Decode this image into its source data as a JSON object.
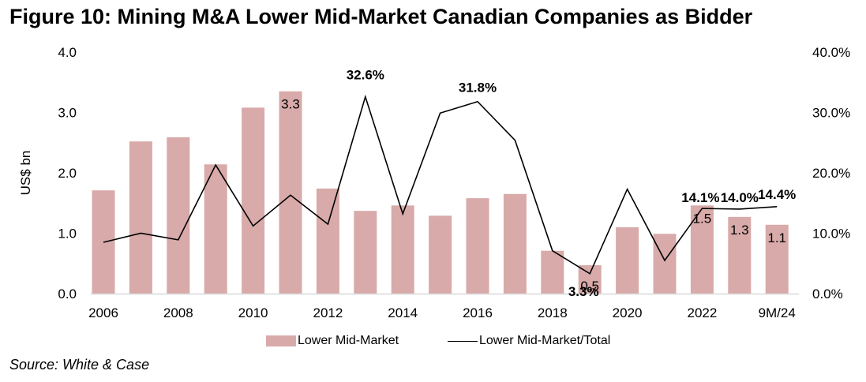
{
  "figure": {
    "title": "Figure 10: Mining M&A Lower Mid-Market Canadian Companies as Bidder",
    "source": "Source: White & Case"
  },
  "legend": {
    "bar_label": "Lower Mid-Market",
    "line_label": "Lower Mid-Market/Total"
  },
  "colors": {
    "bar": "#d8aaa9",
    "line": "#000000",
    "axis": "#d9d9d9"
  },
  "chart_data": {
    "type": "bar",
    "title": "Figure 10: Mining M&A Lower Mid-Market Canadian Companies as Bidder",
    "xlabel": "",
    "ylabel": "US$ bn",
    "y2label": "",
    "ylim": [
      0,
      4.0
    ],
    "y2lim": [
      0,
      0.4
    ],
    "yticks": [
      "0.0",
      "1.0",
      "2.0",
      "3.0",
      "4.0"
    ],
    "y2ticks": [
      "0.0%",
      "10.0%",
      "20.0%",
      "30.0%",
      "40.0%"
    ],
    "grid": false,
    "legend_position": "bottom",
    "categories": [
      "2006",
      "2007",
      "2008",
      "2009",
      "2010",
      "2011",
      "2012",
      "2013",
      "2014",
      "2015",
      "2016",
      "2017",
      "2018",
      "2019",
      "2020",
      "2021",
      "2022",
      "2023",
      "9M/24"
    ],
    "xtick_labels": [
      "2006",
      "",
      "2008",
      "",
      "2010",
      "",
      "2012",
      "",
      "2014",
      "",
      "2016",
      "",
      "2018",
      "",
      "2020",
      "",
      "2022",
      "",
      "9M/24"
    ],
    "series": [
      {
        "name": "Lower Mid-Market",
        "type": "bar",
        "axis": "primary",
        "values": [
          1.71,
          2.52,
          2.59,
          2.14,
          3.08,
          3.35,
          1.74,
          1.37,
          1.46,
          1.29,
          1.58,
          1.65,
          0.71,
          0.47,
          1.1,
          0.99,
          1.46,
          1.27,
          1.14
        ],
        "data_labels": [
          "",
          "",
          "",
          "",
          "",
          "3.3",
          "",
          "",
          "",
          "",
          "",
          "",
          "",
          "0.5",
          "",
          "",
          "1.5",
          "1.3",
          "1.1"
        ]
      },
      {
        "name": "Lower Mid-Market/Total",
        "type": "line",
        "axis": "secondary",
        "values": [
          0.085,
          0.1,
          0.089,
          0.213,
          0.112,
          0.163,
          0.115,
          0.326,
          0.132,
          0.299,
          0.318,
          0.254,
          0.071,
          0.033,
          0.173,
          0.055,
          0.141,
          0.14,
          0.144
        ],
        "data_labels": [
          "",
          "",
          "",
          "",
          "",
          "",
          "",
          "32.6%",
          "",
          "",
          "31.8%",
          "",
          "",
          "3.3%",
          "",
          "",
          "14.1%",
          "14.0%",
          "14.4%"
        ]
      }
    ]
  }
}
